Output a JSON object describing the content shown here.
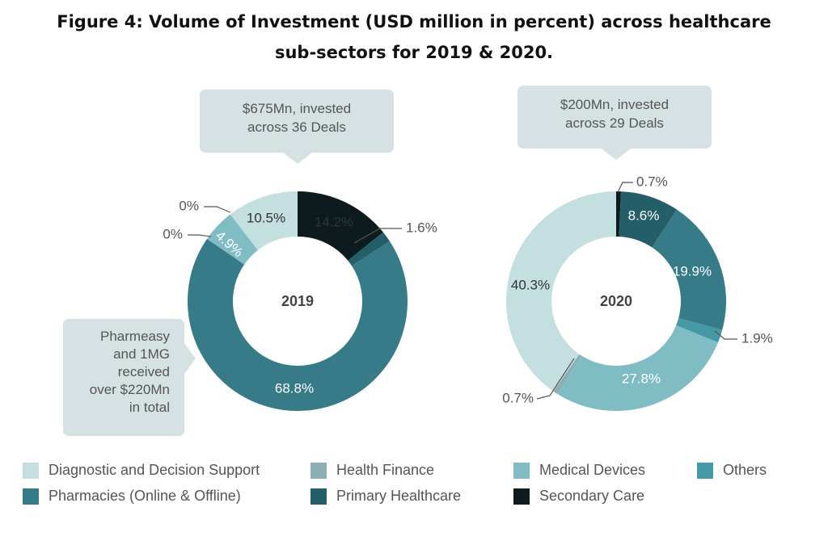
{
  "title_line1": "Figure 4: Volume of Investment (USD million in percent) across healthcare",
  "title_line2": "sub-sectors for 2019 & 2020.",
  "colors": {
    "Diagnostic and Decision Support": "#c3dfe0",
    "Health Finance": "#8cafb4",
    "Medical Devices": "#7fbcc3",
    "Others": "#4599a6",
    "Pharmacies (Online & Offline)": "#377a88",
    "Primary Healthcare": "#245f69",
    "Secondary Care": "#0d1b1e"
  },
  "legend": [
    "Diagnostic and Decision Support",
    "Health Finance",
    "Medical Devices",
    "Others",
    "Pharmacies (Online & Offline)",
    "Primary Healthcare",
    "Secondary Care"
  ],
  "chart_data": [
    {
      "type": "pie",
      "center_label": "2019",
      "callout": [
        "$675Mn, invested",
        "across 36 Deals"
      ],
      "note": [
        "Pharmeasy",
        "and 1MG",
        "received",
        "over $220Mn",
        "in total"
      ],
      "slices": [
        {
          "category": "Secondary Care",
          "value": 14.2,
          "label": "14.2%"
        },
        {
          "category": "Primary Healthcare",
          "value": 1.6,
          "label": "1.6%"
        },
        {
          "category": "Pharmacies (Online & Offline)",
          "value": 68.8,
          "label": "68.8%"
        },
        {
          "category": "Health Finance",
          "value": 0,
          "label": "0%"
        },
        {
          "category": "Medical Devices",
          "value": 4.9,
          "label": "4.9%"
        },
        {
          "category": "Others",
          "value": 0,
          "label": "0%"
        },
        {
          "category": "Diagnostic and Decision Support",
          "value": 10.5,
          "label": "10.5%"
        }
      ]
    },
    {
      "type": "pie",
      "center_label": "2020",
      "callout": [
        "$200Mn, invested",
        "across 29 Deals"
      ],
      "slices": [
        {
          "category": "Secondary Care",
          "value": 0.7,
          "label": "0.7%"
        },
        {
          "category": "Primary Healthcare",
          "value": 8.6,
          "label": "8.6%"
        },
        {
          "category": "Pharmacies (Online & Offline)",
          "value": 19.9,
          "label": "19.9%"
        },
        {
          "category": "Others",
          "value": 1.9,
          "label": "1.9%"
        },
        {
          "category": "Medical Devices",
          "value": 27.8,
          "label": "27.8%"
        },
        {
          "category": "Health Finance",
          "value": 0.7,
          "label": "0.7%"
        },
        {
          "category": "Diagnostic and Decision Support",
          "value": 40.3,
          "label": "40.3%"
        }
      ]
    }
  ]
}
